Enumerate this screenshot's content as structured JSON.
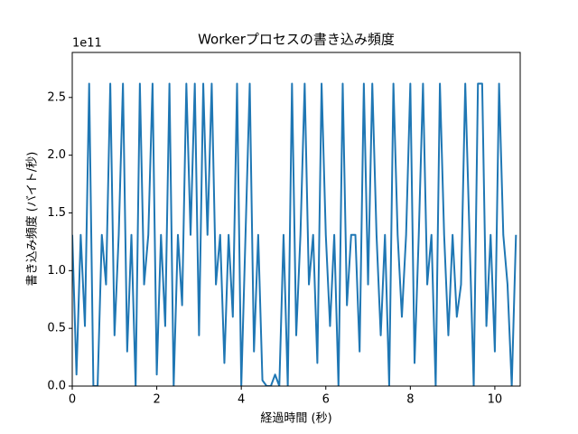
{
  "chart_data": {
    "type": "line",
    "title": "Workerプロセスの書き込み頻度",
    "xlabel": "経過時間 (秒)",
    "ylabel": "書き込み頻度 (バイト/秒)",
    "y_offset_label": "1e11",
    "xlim": [
      0,
      10.6
    ],
    "ylim": [
      0,
      2.89
    ],
    "xticks": [
      0,
      2,
      4,
      6,
      8,
      10
    ],
    "yticks": [
      {
        "value": 0,
        "label": "0.0"
      },
      {
        "value": 0.5,
        "label": "0.5"
      },
      {
        "value": 1,
        "label": "1.0"
      },
      {
        "value": 1.5,
        "label": "1.5"
      },
      {
        "value": 2,
        "label": "2.0"
      },
      {
        "value": 2.5,
        "label": "2.5"
      }
    ],
    "x": [
      0,
      0.1,
      0.2,
      0.3,
      0.4,
      0.5,
      0.6,
      0.7,
      0.8,
      0.9,
      1,
      1.1,
      1.2,
      1.3,
      1.4,
      1.5,
      1.6,
      1.7,
      1.8,
      1.9,
      2,
      2.1,
      2.2,
      2.3,
      2.4,
      2.5,
      2.6,
      2.7,
      2.8,
      2.9,
      3,
      3.1,
      3.2,
      3.3,
      3.4,
      3.5,
      3.6,
      3.7,
      3.8,
      3.9,
      4,
      4.1,
      4.2,
      4.3,
      4.4,
      4.5,
      4.6,
      4.7,
      4.8,
      4.9,
      5,
      5.1,
      5.2,
      5.3,
      5.4,
      5.5,
      5.6,
      5.7,
      5.8,
      5.9,
      6,
      6.1,
      6.2,
      6.3,
      6.4,
      6.5,
      6.6,
      6.7,
      6.8,
      6.9,
      7,
      7.1,
      7.2,
      7.3,
      7.4,
      7.5,
      7.6,
      7.7,
      7.8,
      7.9,
      8,
      8.1,
      8.2,
      8.3,
      8.4,
      8.5,
      8.6,
      8.7,
      8.8,
      8.9,
      9,
      9.1,
      9.2,
      9.3,
      9.4,
      9.5,
      9.6,
      9.7,
      9.8,
      9.9,
      10,
      10.1,
      10.2,
      10.3,
      10.4,
      10.5
    ],
    "series": [
      {
        "name": "書き込み頻度",
        "color": "#1f77b4",
        "values": [
          1.31,
          0.1,
          1.31,
          0.52,
          2.62,
          0,
          0,
          1.31,
          0.88,
          2.62,
          0.44,
          1.31,
          2.62,
          0.3,
          1.31,
          0,
          2.62,
          0.88,
          1.31,
          2.62,
          0.1,
          1.31,
          0.52,
          2.62,
          0,
          1.31,
          0.7,
          2.62,
          1.31,
          2.62,
          0.44,
          2.62,
          1.31,
          2.62,
          0.88,
          1.31,
          0.2,
          1.31,
          0.6,
          2.62,
          0,
          1.31,
          2.62,
          0.3,
          1.31,
          0.05,
          0,
          0,
          0.1,
          0,
          1.31,
          0,
          2.62,
          0.44,
          1.31,
          2.62,
          0.88,
          1.31,
          0.2,
          2.62,
          1.31,
          0.52,
          1.31,
          0,
          2.62,
          0.7,
          1.31,
          1.31,
          0.3,
          2.62,
          0.88,
          2.62,
          1.31,
          0.44,
          1.31,
          0,
          2.62,
          1.31,
          0.6,
          1.31,
          2.62,
          0.2,
          1.31,
          2.62,
          0.88,
          1.31,
          0,
          2.62,
          1.31,
          0.44,
          1.31,
          0.6,
          0.88,
          2.62,
          1.31,
          0,
          2.62,
          2.62,
          0.52,
          1.31,
          0.3,
          2.62,
          1.31,
          0.88,
          0,
          1.31
        ]
      }
    ]
  }
}
